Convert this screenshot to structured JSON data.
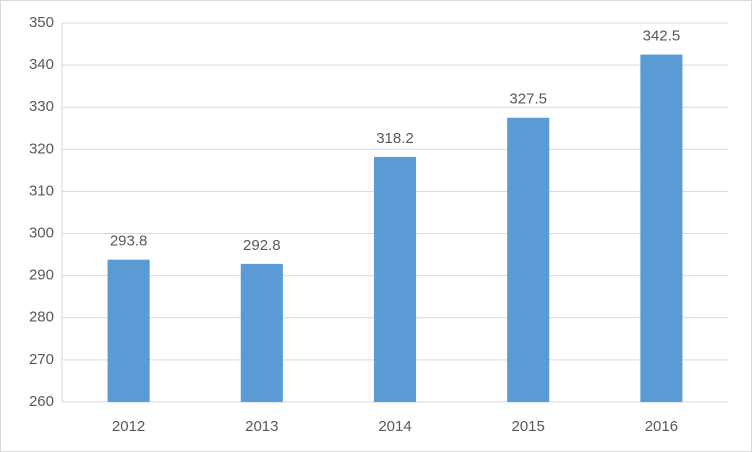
{
  "chart_data": {
    "type": "bar",
    "categories": [
      "2012",
      "2013",
      "2014",
      "2015",
      "2016"
    ],
    "values": [
      293.8,
      292.8,
      318.2,
      327.5,
      342.5
    ],
    "color": "#5b9bd5",
    "ylim": [
      260,
      350
    ],
    "yticks": [
      260,
      270,
      280,
      290,
      300,
      310,
      320,
      330,
      340,
      350
    ],
    "grid": true,
    "data_labels": true
  }
}
